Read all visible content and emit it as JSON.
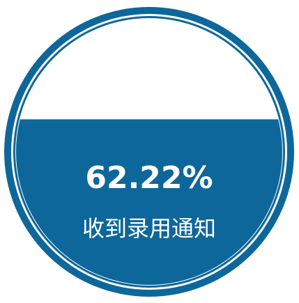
{
  "chart_data": {
    "type": "gauge",
    "categories": [
      "收到录用通知"
    ],
    "values": [
      62.22
    ],
    "value_labels": [
      "62.22%"
    ],
    "ylim": [
      0,
      100
    ],
    "color": "#0e679a"
  }
}
